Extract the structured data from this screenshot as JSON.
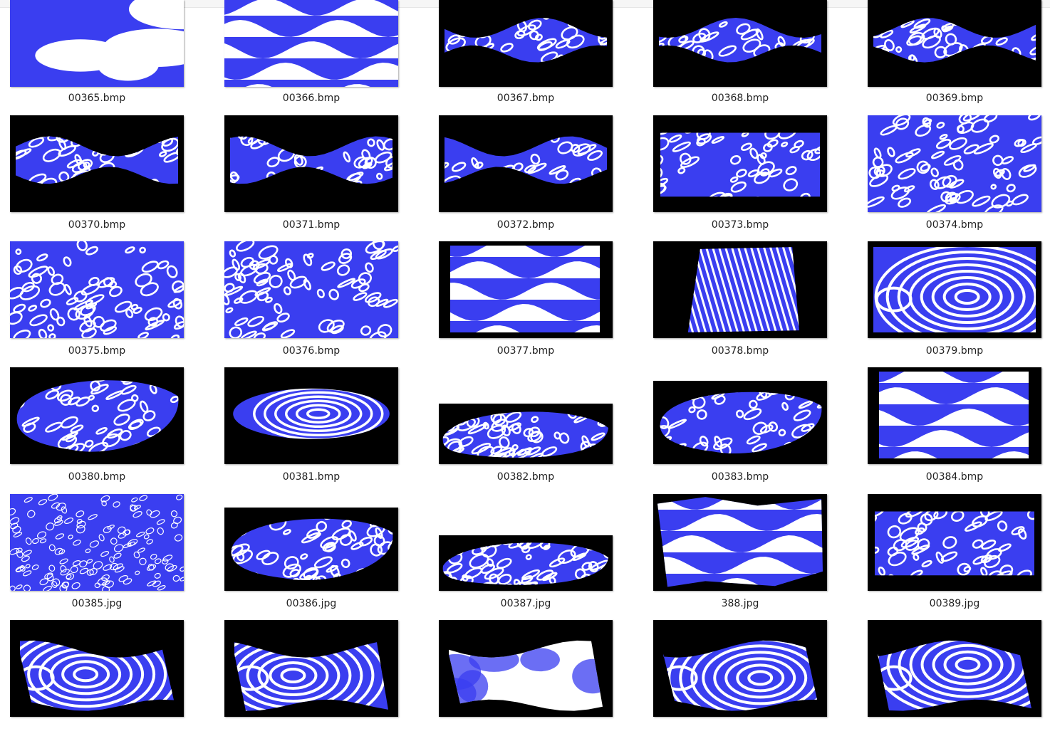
{
  "colors": {
    "accent": "#3a3ef0",
    "light": "#ffffff",
    "dark": "#000000"
  },
  "files": [
    {
      "name": "00365.bmp",
      "icon": "blob-pattern-thumbnail",
      "bg": "#3a3ef0",
      "mode": "blob"
    },
    {
      "name": "00366.bmp",
      "icon": "wave-pattern-thumbnail",
      "bg": "#3a3ef0",
      "mode": "wave"
    },
    {
      "name": "00367.bmp",
      "icon": "ribbon-pattern-thumbnail",
      "bg": "#000000",
      "mode": "ribbon"
    },
    {
      "name": "00368.bmp",
      "icon": "ribbon-pattern-thumbnail",
      "bg": "#000000",
      "mode": "ribbon"
    },
    {
      "name": "00369.bmp",
      "icon": "ribbon-pattern-thumbnail",
      "bg": "#000000",
      "mode": "ribbon"
    },
    {
      "name": "00370.bmp",
      "icon": "ribbon-pattern-thumbnail",
      "bg": "#000000",
      "mode": "ribbon"
    },
    {
      "name": "00371.bmp",
      "icon": "ribbon-pattern-thumbnail",
      "bg": "#000000",
      "mode": "ribbon"
    },
    {
      "name": "00372.bmp",
      "icon": "ribbon-pattern-thumbnail",
      "bg": "#000000",
      "mode": "ribbon"
    },
    {
      "name": "00373.bmp",
      "icon": "band-pattern-thumbnail",
      "bg": "#000000",
      "mode": "band"
    },
    {
      "name": "00374.bmp",
      "icon": "diagonal-pattern-thumbnail",
      "bg": "#3a3ef0",
      "mode": "diag"
    },
    {
      "name": "00375.bmp",
      "icon": "diagonal-pattern-thumbnail",
      "bg": "#3a3ef0",
      "mode": "diag"
    },
    {
      "name": "00376.bmp",
      "icon": "diagonal-pattern-thumbnail",
      "bg": "#3a3ef0",
      "mode": "diag"
    },
    {
      "name": "00377.bmp",
      "icon": "blob-pattern-thumbnail",
      "bg": "#000000",
      "mode": "boxblob"
    },
    {
      "name": "00378.bmp",
      "icon": "stripe-pattern-thumbnail",
      "bg": "#000000",
      "mode": "stripes"
    },
    {
      "name": "00379.bmp",
      "icon": "contour-pattern-thumbnail",
      "bg": "#000000",
      "mode": "contour"
    },
    {
      "name": "00380.bmp",
      "icon": "lens-pattern-thumbnail",
      "bg": "#000000",
      "mode": "lens"
    },
    {
      "name": "00381.bmp",
      "icon": "ring-pattern-thumbnail",
      "bg": "#000000",
      "mode": "rings"
    },
    {
      "name": "00382.bmp",
      "icon": "lens-pattern-thumbnail",
      "bg": "#000000",
      "mode": "lenssmall"
    },
    {
      "name": "00383.bmp",
      "icon": "lens-pattern-thumbnail",
      "bg": "#000000",
      "mode": "lens"
    },
    {
      "name": "00384.bmp",
      "icon": "blob-pattern-thumbnail",
      "bg": "#000000",
      "mode": "boxblob"
    },
    {
      "name": "00385.jpg",
      "icon": "dots-pattern-thumbnail",
      "bg": "#3a3ef0",
      "mode": "dots"
    },
    {
      "name": "00386.jpg",
      "icon": "lens-pattern-thumbnail",
      "bg": "#000000",
      "mode": "lensdots"
    },
    {
      "name": "00387.jpg",
      "icon": "lens-pattern-thumbnail",
      "bg": "#000000",
      "mode": "lenssmall"
    },
    {
      "name": "388.jpg",
      "icon": "wave-pattern-thumbnail",
      "bg": "#000000",
      "mode": "ragged"
    },
    {
      "name": "00389.jpg",
      "icon": "stripe-pattern-thumbnail",
      "bg": "#000000",
      "mode": "band"
    },
    {
      "name": "",
      "icon": "contour-pattern-thumbnail",
      "bg": "#000000",
      "mode": "sheet"
    },
    {
      "name": "",
      "icon": "contour-pattern-thumbnail",
      "bg": "#000000",
      "mode": "sheet"
    },
    {
      "name": "",
      "icon": "gradient-blob-thumbnail",
      "bg": "#000000",
      "mode": "sheetgrad"
    },
    {
      "name": "",
      "icon": "contour-pattern-thumbnail",
      "bg": "#000000",
      "mode": "sheet"
    },
    {
      "name": "",
      "icon": "contour-pattern-thumbnail",
      "bg": "#000000",
      "mode": "sheet"
    }
  ]
}
